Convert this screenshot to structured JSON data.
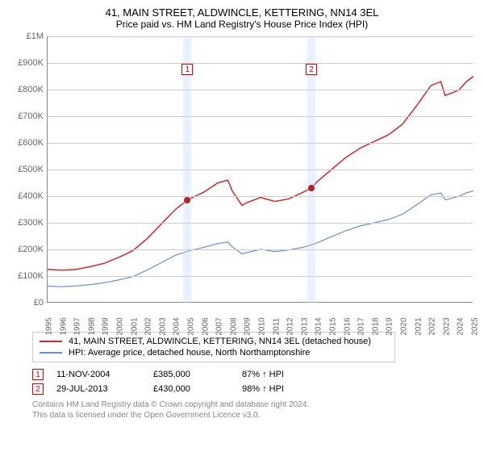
{
  "title": "41, MAIN STREET, ALDWINCLE, KETTERING, NN14 3EL",
  "subtitle": "Price paid vs. HM Land Registry's House Price Index (HPI)",
  "chart": {
    "type": "line",
    "ylim": [
      0,
      1000000
    ],
    "ytick_step": 100000,
    "yticks": [
      "£0",
      "£100K",
      "£200K",
      "£300K",
      "£400K",
      "£500K",
      "£600K",
      "£700K",
      "£800K",
      "£900K",
      "£1M"
    ],
    "xlim": [
      1995,
      2025
    ],
    "xticks": [
      "1995",
      "1996",
      "1997",
      "1998",
      "1999",
      "2000",
      "2001",
      "2002",
      "2003",
      "2004",
      "2005",
      "2006",
      "2007",
      "2008",
      "2009",
      "2010",
      "2011",
      "2012",
      "2013",
      "2014",
      "2015",
      "2016",
      "2017",
      "2018",
      "2019",
      "2020",
      "2021",
      "2022",
      "2023",
      "2024",
      "2025"
    ],
    "grid_color": "#cccccc",
    "background_color": "#ffffff",
    "series": [
      {
        "name": "property",
        "label": "41, MAIN STREET, ALDWINCLE, KETTERING, NN14 3EL (detached house)",
        "color": "#d62728",
        "line_width": 1.5,
        "data": [
          [
            1995,
            125000
          ],
          [
            1996,
            122000
          ],
          [
            1997,
            125000
          ],
          [
            1998,
            135000
          ],
          [
            1999,
            148000
          ],
          [
            2000,
            170000
          ],
          [
            2001,
            195000
          ],
          [
            2002,
            240000
          ],
          [
            2003,
            295000
          ],
          [
            2004,
            350000
          ],
          [
            2004.85,
            385000
          ],
          [
            2005,
            390000
          ],
          [
            2006,
            415000
          ],
          [
            2007,
            450000
          ],
          [
            2007.7,
            460000
          ],
          [
            2008,
            420000
          ],
          [
            2008.7,
            365000
          ],
          [
            2009,
            375000
          ],
          [
            2010,
            395000
          ],
          [
            2011,
            380000
          ],
          [
            2012,
            390000
          ],
          [
            2013,
            415000
          ],
          [
            2013.58,
            430000
          ],
          [
            2014,
            455000
          ],
          [
            2015,
            500000
          ],
          [
            2016,
            545000
          ],
          [
            2017,
            580000
          ],
          [
            2018,
            605000
          ],
          [
            2019,
            630000
          ],
          [
            2020,
            670000
          ],
          [
            2021,
            740000
          ],
          [
            2022,
            815000
          ],
          [
            2022.7,
            830000
          ],
          [
            2023,
            778000
          ],
          [
            2023.5,
            788000
          ],
          [
            2024,
            800000
          ],
          [
            2024.5,
            830000
          ],
          [
            2025,
            850000
          ]
        ]
      },
      {
        "name": "hpi",
        "label": "HPI: Average price, detached house, North Northamptonshire",
        "color": "#6a8fd4",
        "line_width": 1.2,
        "data": [
          [
            1995,
            62000
          ],
          [
            1996,
            60000
          ],
          [
            1997,
            63000
          ],
          [
            1998,
            68000
          ],
          [
            1999,
            75000
          ],
          [
            2000,
            85000
          ],
          [
            2001,
            98000
          ],
          [
            2002,
            122000
          ],
          [
            2003,
            150000
          ],
          [
            2004,
            178000
          ],
          [
            2005,
            195000
          ],
          [
            2006,
            208000
          ],
          [
            2007,
            222000
          ],
          [
            2007.7,
            228000
          ],
          [
            2008,
            210000
          ],
          [
            2008.7,
            183000
          ],
          [
            2009,
            188000
          ],
          [
            2010,
            200000
          ],
          [
            2011,
            192000
          ],
          [
            2012,
            198000
          ],
          [
            2013,
            208000
          ],
          [
            2014,
            225000
          ],
          [
            2015,
            248000
          ],
          [
            2016,
            270000
          ],
          [
            2017,
            288000
          ],
          [
            2018,
            300000
          ],
          [
            2019,
            312000
          ],
          [
            2020,
            332000
          ],
          [
            2021,
            368000
          ],
          [
            2022,
            405000
          ],
          [
            2022.7,
            412000
          ],
          [
            2023,
            386000
          ],
          [
            2023.5,
            392000
          ],
          [
            2024,
            400000
          ],
          [
            2024.5,
            412000
          ],
          [
            2025,
            420000
          ]
        ]
      }
    ],
    "markers": [
      {
        "num": "1",
        "x": 2004.85,
        "y": 385000,
        "band_color": "#c7dbff"
      },
      {
        "num": "2",
        "x": 2013.58,
        "y": 430000,
        "band_color": "#c7dbff"
      }
    ],
    "marker_dot_color": "#b22222"
  },
  "legend": {
    "items": [
      {
        "color": "#d62728",
        "label": "41, MAIN STREET, ALDWINCLE, KETTERING, NN14 3EL (detached house)"
      },
      {
        "color": "#6a8fd4",
        "label": "HPI: Average price, detached house, North Northamptonshire"
      }
    ]
  },
  "sales": [
    {
      "num": "1",
      "date": "11-NOV-2004",
      "price": "£385,000",
      "hpi": "87% ↑ HPI"
    },
    {
      "num": "2",
      "date": "29-JUL-2013",
      "price": "£430,000",
      "hpi": "98% ↑ HPI"
    }
  ],
  "footer_line1": "Contains HM Land Registry data © Crown copyright and database right 2024.",
  "footer_line2": "This data is licensed under the Open Government Licence v3.0."
}
